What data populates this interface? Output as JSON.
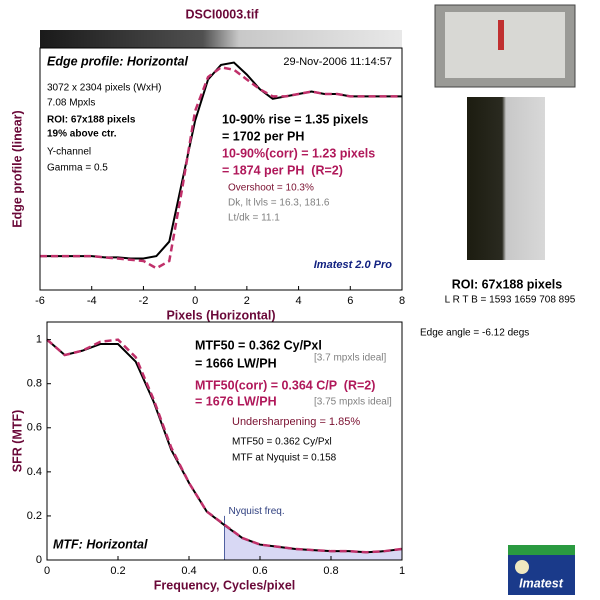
{
  "title": "DSCI0003.tif",
  "chart_data": [
    {
      "type": "line",
      "title": "Edge profile: Horizontal",
      "xlabel": "Pixels (Horizontal)",
      "ylabel": "Edge profile (linear)",
      "xlim": [
        -6,
        8
      ],
      "xticks": [
        -6,
        -4,
        -2,
        0,
        2,
        4,
        6,
        8
      ],
      "ylim": [
        0,
        1
      ],
      "x": [
        -6,
        -5.5,
        -5,
        -4.5,
        -4,
        -3.5,
        -3,
        -2.5,
        -2,
        -1.5,
        -1,
        -0.5,
        0,
        0.5,
        1,
        1.5,
        2,
        2.5,
        3,
        3.5,
        4,
        4.5,
        5,
        5.5,
        6,
        6.5,
        7,
        7.5,
        8
      ],
      "series": [
        {
          "color": "#000000",
          "style": "solid",
          "values": [
            0.14,
            0.14,
            0.14,
            0.14,
            0.14,
            0.135,
            0.135,
            0.13,
            0.13,
            0.14,
            0.2,
            0.45,
            0.7,
            0.87,
            0.93,
            0.94,
            0.89,
            0.83,
            0.79,
            0.8,
            0.81,
            0.82,
            0.81,
            0.81,
            0.8,
            0.8,
            0.8,
            0.8,
            0.8
          ]
        },
        {
          "color": "#c0306a",
          "style": "dashed",
          "values": [
            0.14,
            0.14,
            0.14,
            0.14,
            0.14,
            0.135,
            0.13,
            0.125,
            0.12,
            0.09,
            0.12,
            0.42,
            0.74,
            0.88,
            0.92,
            0.91,
            0.87,
            0.83,
            0.8,
            0.8,
            0.81,
            0.82,
            0.81,
            0.81,
            0.8,
            0.8,
            0.8,
            0.8,
            0.8
          ]
        }
      ],
      "annotations": [
        "29-Nov-2006 11:14:57",
        "3072 x 2304 pixels (WxH)",
        "7.08 Mpxls",
        "ROI: 67x188 pixels",
        "19% above ctr.",
        "Y-channel",
        "Gamma = 0.5",
        "10-90% rise = 1.35 pixels",
        "= 1702 per PH",
        "10-90%(corr) = 1.23 pixels",
        "= 1874 per PH  (R=2)",
        "Overshoot = 10.3%",
        "Dk, lt lvls = 16.3, 181.6",
        "Lt/dk = 11.1",
        "Imatest 2.0 Pro"
      ]
    },
    {
      "type": "line",
      "title": "MTF: Horizontal",
      "xlabel": "Frequency, Cycles/pixel",
      "ylabel": "SFR (MTF)",
      "xlim": [
        0,
        1
      ],
      "xticks": [
        0,
        0.2,
        0.4,
        0.6,
        0.8,
        1
      ],
      "ylim": [
        0,
        1.08
      ],
      "yticks": [
        0,
        0.2,
        0.4,
        0.6,
        0.8,
        1
      ],
      "nyquist": 0.5,
      "nyquist_label": "Nyquist freq.",
      "x": [
        0,
        0.05,
        0.1,
        0.15,
        0.2,
        0.25,
        0.3,
        0.35,
        0.4,
        0.45,
        0.5,
        0.55,
        0.6,
        0.65,
        0.7,
        0.75,
        0.8,
        0.85,
        0.9,
        0.95,
        1
      ],
      "series": [
        {
          "color": "#000000",
          "style": "solid",
          "values": [
            1.0,
            0.93,
            0.95,
            0.98,
            0.98,
            0.9,
            0.72,
            0.5,
            0.35,
            0.22,
            0.158,
            0.1,
            0.07,
            0.06,
            0.05,
            0.045,
            0.04,
            0.04,
            0.035,
            0.04,
            0.05
          ]
        },
        {
          "color": "#c0306a",
          "style": "dashed",
          "values": [
            1.0,
            0.93,
            0.95,
            0.99,
            1.0,
            0.92,
            0.73,
            0.51,
            0.35,
            0.22,
            0.16,
            0.1,
            0.07,
            0.06,
            0.05,
            0.045,
            0.04,
            0.04,
            0.035,
            0.04,
            0.05
          ]
        }
      ],
      "annotations": [
        "MTF50 = 0.362 Cy/Pxl",
        "= 1666 LW/PH",
        "[3.7 mpxls ideal]",
        "MTF50(corr) = 0.364 C/P  (R=2)",
        "= 1676 LW/PH",
        "[3.75 mpxls ideal]",
        "Undersharpening = 1.85%",
        "MTF50 = 0.362 Cy/Pxl",
        "MTF at Nyquist = 0.158"
      ]
    }
  ],
  "roi_label": "ROI: 67x188 pixels",
  "roi_coords": "L R T B = 1593 1659 708 895",
  "edge_angle": "Edge angle = -6.12 degs",
  "logo": "Imatest"
}
